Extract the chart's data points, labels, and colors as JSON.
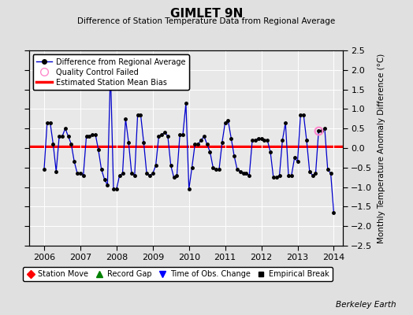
{
  "title": "GIMLET 9N",
  "subtitle": "Difference of Station Temperature Data from Regional Average",
  "ylabel": "Monthly Temperature Anomaly Difference (°C)",
  "xlabel_years": [
    2006,
    2007,
    2008,
    2009,
    2010,
    2011,
    2012,
    2013,
    2014
  ],
  "xlim": [
    2005.58,
    2014.25
  ],
  "ylim": [
    -2.5,
    2.5
  ],
  "bias_value": 0.05,
  "watermark": "Berkeley Earth",
  "background_color": "#e0e0e0",
  "plot_background": "#e8e8e8",
  "line_color": "#0000cc",
  "bias_color": "#ff0000",
  "qc_color": "#ff88cc",
  "series": {
    "times": [
      2006.0,
      2006.083,
      2006.167,
      2006.25,
      2006.333,
      2006.417,
      2006.5,
      2006.583,
      2006.667,
      2006.75,
      2006.833,
      2006.917,
      2007.0,
      2007.083,
      2007.167,
      2007.25,
      2007.333,
      2007.417,
      2007.5,
      2007.583,
      2007.667,
      2007.75,
      2007.833,
      2007.917,
      2008.0,
      2008.083,
      2008.167,
      2008.25,
      2008.333,
      2008.417,
      2008.5,
      2008.583,
      2008.667,
      2008.75,
      2008.833,
      2008.917,
      2009.0,
      2009.083,
      2009.167,
      2009.25,
      2009.333,
      2009.417,
      2009.5,
      2009.583,
      2009.667,
      2009.75,
      2009.833,
      2009.917,
      2010.0,
      2010.083,
      2010.167,
      2010.25,
      2010.333,
      2010.417,
      2010.5,
      2010.583,
      2010.667,
      2010.75,
      2010.833,
      2010.917,
      2011.0,
      2011.083,
      2011.167,
      2011.25,
      2011.333,
      2011.417,
      2011.5,
      2011.583,
      2011.667,
      2011.75,
      2011.833,
      2011.917,
      2012.0,
      2012.083,
      2012.167,
      2012.25,
      2012.333,
      2012.417,
      2012.5,
      2012.583,
      2012.667,
      2012.75,
      2012.833,
      2012.917,
      2013.0,
      2013.083,
      2013.167,
      2013.25,
      2013.333,
      2013.417,
      2013.5,
      2013.583,
      2013.667,
      2013.75,
      2013.833,
      2013.917,
      2014.0
    ],
    "values": [
      -0.55,
      0.65,
      0.65,
      0.1,
      -0.6,
      0.3,
      0.3,
      0.5,
      0.3,
      0.1,
      -0.35,
      -0.65,
      -0.65,
      -0.7,
      0.3,
      0.3,
      0.35,
      0.35,
      -0.05,
      -0.55,
      -0.8,
      -0.95,
      2.0,
      -1.05,
      -1.05,
      -0.7,
      -0.65,
      0.75,
      0.15,
      -0.65,
      -0.7,
      0.85,
      0.85,
      0.15,
      -0.65,
      -0.7,
      -0.65,
      -0.45,
      0.3,
      0.35,
      0.4,
      0.3,
      -0.45,
      -0.75,
      -0.7,
      0.35,
      0.35,
      1.15,
      -1.05,
      -0.5,
      0.1,
      0.1,
      0.2,
      0.3,
      0.1,
      -0.1,
      -0.5,
      -0.55,
      -0.55,
      0.15,
      0.65,
      0.7,
      0.25,
      -0.2,
      -0.55,
      -0.6,
      -0.65,
      -0.65,
      -0.7,
      0.2,
      0.2,
      0.25,
      0.25,
      0.2,
      0.2,
      -0.1,
      -0.75,
      -0.75,
      -0.7,
      0.2,
      0.65,
      -0.7,
      -0.7,
      -0.25,
      -0.35,
      0.85,
      0.85,
      0.2,
      -0.6,
      -0.7,
      -0.65,
      0.45,
      0.45,
      0.5,
      -0.55,
      -0.65,
      -1.65
    ]
  },
  "qc_failed_points": [
    {
      "time": 2013.583,
      "value": 0.45
    }
  ]
}
